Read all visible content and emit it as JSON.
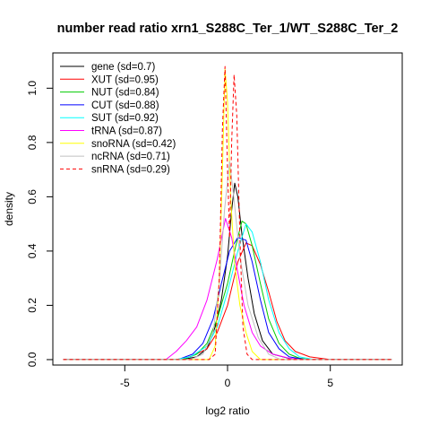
{
  "chart_data": {
    "type": "line",
    "title": "number read ratio xrn1_S288C_Ter_1/WT_S288C_Ter_2",
    "xlabel": "log2 ratio",
    "ylabel": "density",
    "xlim": [
      -8.5,
      8.5
    ],
    "ylim": [
      -0.02,
      1.13
    ],
    "x_ticks": [
      -5,
      0,
      5
    ],
    "x_tick_labels": [
      "-5",
      "0",
      "5"
    ],
    "y_ticks": [
      0.0,
      0.2,
      0.4,
      0.6,
      0.8,
      1.0
    ],
    "y_tick_labels": [
      "0.0",
      "0.2",
      "0.4",
      "0.6",
      "0.8",
      "1.0"
    ],
    "legend_position": "top-left",
    "series": [
      {
        "name": "gene (sd=0.7)",
        "color": "#000000",
        "dash": false,
        "points": [
          [
            -8,
            0
          ],
          [
            -2.2,
            0
          ],
          [
            -1.5,
            0.01
          ],
          [
            -1.0,
            0.04
          ],
          [
            -0.6,
            0.12
          ],
          [
            -0.3,
            0.22
          ],
          [
            0.0,
            0.38
          ],
          [
            0.2,
            0.55
          ],
          [
            0.35,
            0.65
          ],
          [
            0.5,
            0.6
          ],
          [
            0.7,
            0.46
          ],
          [
            1.0,
            0.3
          ],
          [
            1.3,
            0.17
          ],
          [
            1.7,
            0.07
          ],
          [
            2.2,
            0.02
          ],
          [
            3.0,
            0.004
          ],
          [
            3.8,
            0
          ],
          [
            8,
            0
          ]
        ]
      },
      {
        "name": "XUT (sd=0.95)",
        "color": "#ff0000",
        "dash": false,
        "points": [
          [
            -8,
            0
          ],
          [
            -2.5,
            0
          ],
          [
            -1.8,
            0.01
          ],
          [
            -1.0,
            0.04
          ],
          [
            -0.5,
            0.1
          ],
          [
            0.0,
            0.2
          ],
          [
            0.5,
            0.36
          ],
          [
            0.9,
            0.43
          ],
          [
            1.2,
            0.42
          ],
          [
            1.6,
            0.35
          ],
          [
            2.0,
            0.25
          ],
          [
            2.4,
            0.14
          ],
          [
            2.8,
            0.07
          ],
          [
            3.3,
            0.03
          ],
          [
            4.0,
            0.01
          ],
          [
            5.0,
            0
          ],
          [
            8,
            0
          ]
        ]
      },
      {
        "name": "NUT (sd=0.84)",
        "color": "#00cc00",
        "dash": false,
        "points": [
          [
            -8,
            0
          ],
          [
            -2.2,
            0
          ],
          [
            -1.5,
            0.02
          ],
          [
            -1.0,
            0.06
          ],
          [
            -0.5,
            0.15
          ],
          [
            0.0,
            0.28
          ],
          [
            0.4,
            0.42
          ],
          [
            0.7,
            0.51
          ],
          [
            0.9,
            0.5
          ],
          [
            1.2,
            0.42
          ],
          [
            1.6,
            0.28
          ],
          [
            2.0,
            0.15
          ],
          [
            2.5,
            0.06
          ],
          [
            3.0,
            0.02
          ],
          [
            3.5,
            0.005
          ],
          [
            4.0,
            0
          ],
          [
            8,
            0
          ]
        ]
      },
      {
        "name": "CUT (sd=0.88)",
        "color": "#0000ff",
        "dash": false,
        "points": [
          [
            -8,
            0
          ],
          [
            -2.4,
            0
          ],
          [
            -1.7,
            0.02
          ],
          [
            -1.2,
            0.06
          ],
          [
            -0.7,
            0.15
          ],
          [
            -0.3,
            0.28
          ],
          [
            0.1,
            0.4
          ],
          [
            0.5,
            0.45
          ],
          [
            0.9,
            0.44
          ],
          [
            1.2,
            0.36
          ],
          [
            1.6,
            0.22
          ],
          [
            2.0,
            0.1
          ],
          [
            2.5,
            0.04
          ],
          [
            3.0,
            0.01
          ],
          [
            3.8,
            0
          ],
          [
            8,
            0
          ]
        ]
      },
      {
        "name": "SUT (sd=0.92)",
        "color": "#00ffff",
        "dash": false,
        "points": [
          [
            -8,
            0
          ],
          [
            -2.5,
            0
          ],
          [
            -1.8,
            0.01
          ],
          [
            -1.0,
            0.05
          ],
          [
            -0.5,
            0.12
          ],
          [
            0.0,
            0.25
          ],
          [
            0.5,
            0.4
          ],
          [
            0.9,
            0.5
          ],
          [
            1.2,
            0.47
          ],
          [
            1.6,
            0.36
          ],
          [
            2.0,
            0.22
          ],
          [
            2.5,
            0.1
          ],
          [
            3.0,
            0.04
          ],
          [
            3.5,
            0.01
          ],
          [
            4.2,
            0
          ],
          [
            8,
            0
          ]
        ]
      },
      {
        "name": "tRNA (sd=0.87)",
        "color": "#ff00ff",
        "dash": false,
        "points": [
          [
            -8,
            0
          ],
          [
            -3.0,
            0
          ],
          [
            -2.5,
            0.03
          ],
          [
            -2.0,
            0.07
          ],
          [
            -1.5,
            0.12
          ],
          [
            -1.0,
            0.22
          ],
          [
            -0.5,
            0.37
          ],
          [
            -0.1,
            0.52
          ],
          [
            0.2,
            0.45
          ],
          [
            0.5,
            0.32
          ],
          [
            0.8,
            0.2
          ],
          [
            1.2,
            0.1
          ],
          [
            1.6,
            0.05
          ],
          [
            2.2,
            0.02
          ],
          [
            3.0,
            0.005
          ],
          [
            3.5,
            0
          ],
          [
            8,
            0
          ]
        ]
      },
      {
        "name": "snoRNA (sd=0.42)",
        "color": "#ffff00",
        "dash": false,
        "points": [
          [
            -8,
            0
          ],
          [
            -0.9,
            0
          ],
          [
            -0.6,
            0.05
          ],
          [
            -0.4,
            0.3
          ],
          [
            -0.25,
            0.7
          ],
          [
            -0.12,
            1.07
          ],
          [
            0.0,
            0.95
          ],
          [
            0.15,
            0.6
          ],
          [
            0.35,
            0.35
          ],
          [
            0.6,
            0.2
          ],
          [
            0.9,
            0.1
          ],
          [
            1.2,
            0.03
          ],
          [
            1.6,
            0
          ],
          [
            8,
            0
          ]
        ]
      },
      {
        "name": "ncRNA (sd=0.71)",
        "color": "#c0c0c0",
        "dash": false,
        "points": [
          [
            -8,
            0
          ],
          [
            -1.8,
            0
          ],
          [
            -1.2,
            0.02
          ],
          [
            -0.7,
            0.1
          ],
          [
            -0.4,
            0.28
          ],
          [
            -0.15,
            0.55
          ],
          [
            0.1,
            0.73
          ],
          [
            0.3,
            0.6
          ],
          [
            0.6,
            0.38
          ],
          [
            1.0,
            0.2
          ],
          [
            1.5,
            0.08
          ],
          [
            2.0,
            0.02
          ],
          [
            2.6,
            0
          ],
          [
            8,
            0
          ]
        ]
      },
      {
        "name": "snRNA (sd=0.29)",
        "color": "#ff0000",
        "dash": true,
        "points": [
          [
            -8,
            0
          ],
          [
            -0.9,
            0
          ],
          [
            -0.6,
            0.02
          ],
          [
            -0.4,
            0.3
          ],
          [
            -0.25,
            0.85
          ],
          [
            -0.12,
            1.08
          ],
          [
            0.0,
            0.7
          ],
          [
            0.1,
            0.45
          ],
          [
            0.2,
            0.8
          ],
          [
            0.32,
            1.05
          ],
          [
            0.45,
            0.9
          ],
          [
            0.6,
            0.45
          ],
          [
            0.75,
            0.12
          ],
          [
            0.95,
            0.02
          ],
          [
            1.2,
            0
          ],
          [
            8,
            0
          ]
        ]
      }
    ]
  }
}
